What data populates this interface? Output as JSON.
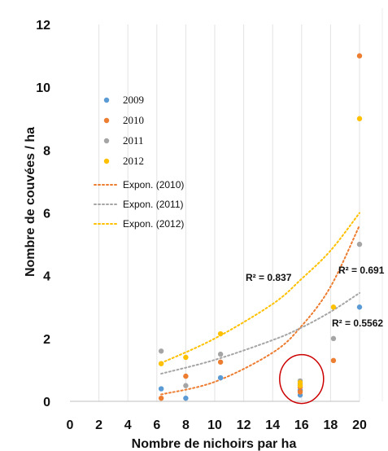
{
  "chart_data": {
    "type": "scatter",
    "title": "",
    "xlabel": "Nombre de nichoirs par ha",
    "ylabel": "Nombre de couvées / ha",
    "xlim": [
      0,
      20
    ],
    "ylim": [
      0,
      12
    ],
    "x_ticks": [
      "0",
      "2",
      "4",
      "6",
      "8",
      "10",
      "12",
      "14",
      "16",
      "18",
      "20"
    ],
    "y_ticks": [
      "0",
      "2",
      "4",
      "6",
      "8",
      "10",
      "12"
    ],
    "grid": "vertical-only",
    "legend_position": "upper-left inside",
    "series": [
      {
        "name": "2009",
        "color": "#5b9bd5",
        "points": [
          [
            6.3,
            0.4
          ],
          [
            8,
            0.1
          ],
          [
            10.4,
            0.75
          ],
          [
            15.9,
            0.2
          ],
          [
            15.9,
            0.35
          ],
          [
            15.9,
            0.55
          ],
          [
            20,
            3.0
          ]
        ]
      },
      {
        "name": "2010",
        "color": "#ed7d31",
        "points": [
          [
            6.3,
            0.1
          ],
          [
            8,
            0.8
          ],
          [
            10.4,
            1.25
          ],
          [
            15.9,
            0.3
          ],
          [
            15.9,
            0.45
          ],
          [
            18.2,
            1.3
          ],
          [
            20,
            11.0
          ]
        ]
      },
      {
        "name": "2011",
        "color": "#a5a5a5",
        "points": [
          [
            6.3,
            1.6
          ],
          [
            8,
            0.5
          ],
          [
            10.4,
            1.5
          ],
          [
            15.9,
            0.5
          ],
          [
            15.9,
            0.65
          ],
          [
            18.2,
            2.0
          ],
          [
            20,
            5.0
          ]
        ]
      },
      {
        "name": "2012",
        "color": "#ffc000",
        "points": [
          [
            6.3,
            1.2
          ],
          [
            8,
            1.4
          ],
          [
            10.4,
            2.15
          ],
          [
            15.9,
            0.5
          ],
          [
            15.9,
            0.6
          ],
          [
            18.2,
            3.0
          ],
          [
            20,
            9.0
          ]
        ]
      }
    ],
    "trendlines": [
      {
        "name": "Expon. (2010)",
        "color": "#ed7d31",
        "x_range": [
          6.3,
          20
        ],
        "points": [
          [
            6.3,
            0.22
          ],
          [
            10,
            0.62
          ],
          [
            14,
            1.55
          ],
          [
            16,
            2.4
          ],
          [
            18,
            3.65
          ],
          [
            20,
            5.6
          ]
        ],
        "r2_label": "R² = 0.691"
      },
      {
        "name": "Expon. (2011)",
        "color": "#a5a5a5",
        "x_range": [
          6.3,
          20
        ],
        "points": [
          [
            6.3,
            0.88
          ],
          [
            10,
            1.32
          ],
          [
            14,
            1.95
          ],
          [
            16,
            2.35
          ],
          [
            18,
            2.85
          ],
          [
            20,
            3.45
          ]
        ],
        "r2_label": "R² = 0.5562"
      },
      {
        "name": "Expon. (2012)",
        "color": "#ffc000",
        "x_range": [
          6.3,
          20
        ],
        "points": [
          [
            6.3,
            1.22
          ],
          [
            10,
            2.0
          ],
          [
            14,
            3.1
          ],
          [
            16,
            3.9
          ],
          [
            18,
            4.8
          ],
          [
            20,
            6.0
          ]
        ],
        "r2_label": "R² = 0.837"
      }
    ],
    "highlight_circle": {
      "color": "#cc0000",
      "center": [
        16,
        0.4
      ]
    }
  }
}
